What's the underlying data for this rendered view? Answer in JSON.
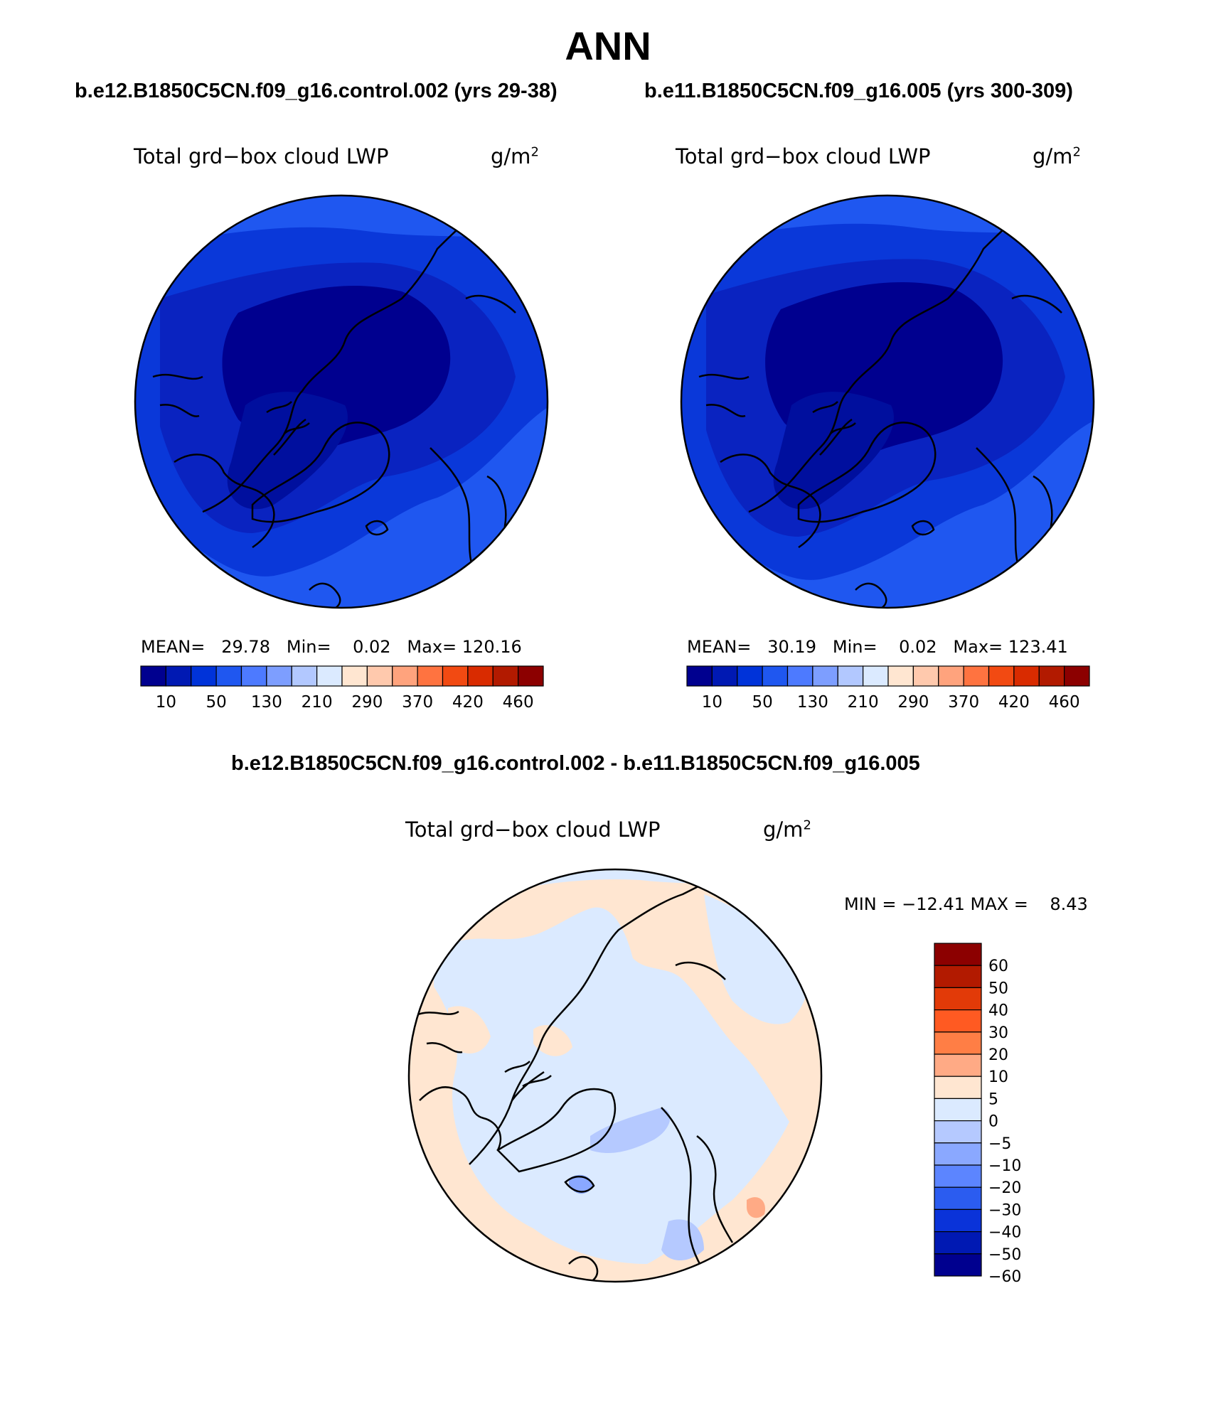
{
  "title": "ANN",
  "panels": [
    {
      "case": "b.e12.B1850C5CN.f09_g16.control.002 (yrs 29-38)",
      "field": "Total grd−box cloud LWP",
      "unit_base": "g/m",
      "unit_exp": "2",
      "mean_label": "MEAN=",
      "mean": "29.78",
      "min_label": "Min=",
      "min": "0.02",
      "max_label": "Max=",
      "max": "120.16"
    },
    {
      "case": "b.e11.B1850C5CN.f09_g16.005 (yrs 300-309)",
      "field": "Total grd−box cloud LWP",
      "unit_base": "g/m",
      "unit_exp": "2",
      "mean_label": "MEAN=",
      "mean": "30.19",
      "min_label": "Min=",
      "min": "0.02",
      "max_label": "Max=",
      "max": "123.41"
    }
  ],
  "diff": {
    "case": "b.e12.B1850C5CN.f09_g16.control.002 - b.e11.B1850C5CN.f09_g16.005",
    "field": "Total grd−box cloud LWP",
    "unit_base": "g/m",
    "unit_exp": "2",
    "stats": "MIN = −12.41 MAX =    8.43"
  },
  "abs_colorbar": {
    "colors": [
      "#00008f",
      "#0019b3",
      "#0033d9",
      "#1f57f0",
      "#4d7aff",
      "#7d9eff",
      "#b2c8ff",
      "#dbeaff",
      "#ffe6d1",
      "#ffc9ad",
      "#ffa37d",
      "#ff7340",
      "#f24a12",
      "#d92b00",
      "#b21a00",
      "#8c0000"
    ],
    "labels": [
      "10",
      "50",
      "130",
      "210",
      "290",
      "370",
      "420",
      "460"
    ]
  },
  "diff_colorbar": {
    "colors_top_to_bottom": [
      "#8c0000",
      "#b21a00",
      "#e23a08",
      "#ff5a22",
      "#ff7e45",
      "#ffaa85",
      "#ffe6d1",
      "#dbeaff",
      "#b5c9ff",
      "#8aa8ff",
      "#5c85ff",
      "#2b5cf0",
      "#0a33d9",
      "#0019b3",
      "#00008f"
    ],
    "labels": [
      "60",
      "50",
      "40",
      "30",
      "20",
      "10",
      "5",
      "0",
      "−5",
      "−10",
      "−20",
      "−30",
      "−40",
      "−50",
      "−60"
    ]
  }
}
